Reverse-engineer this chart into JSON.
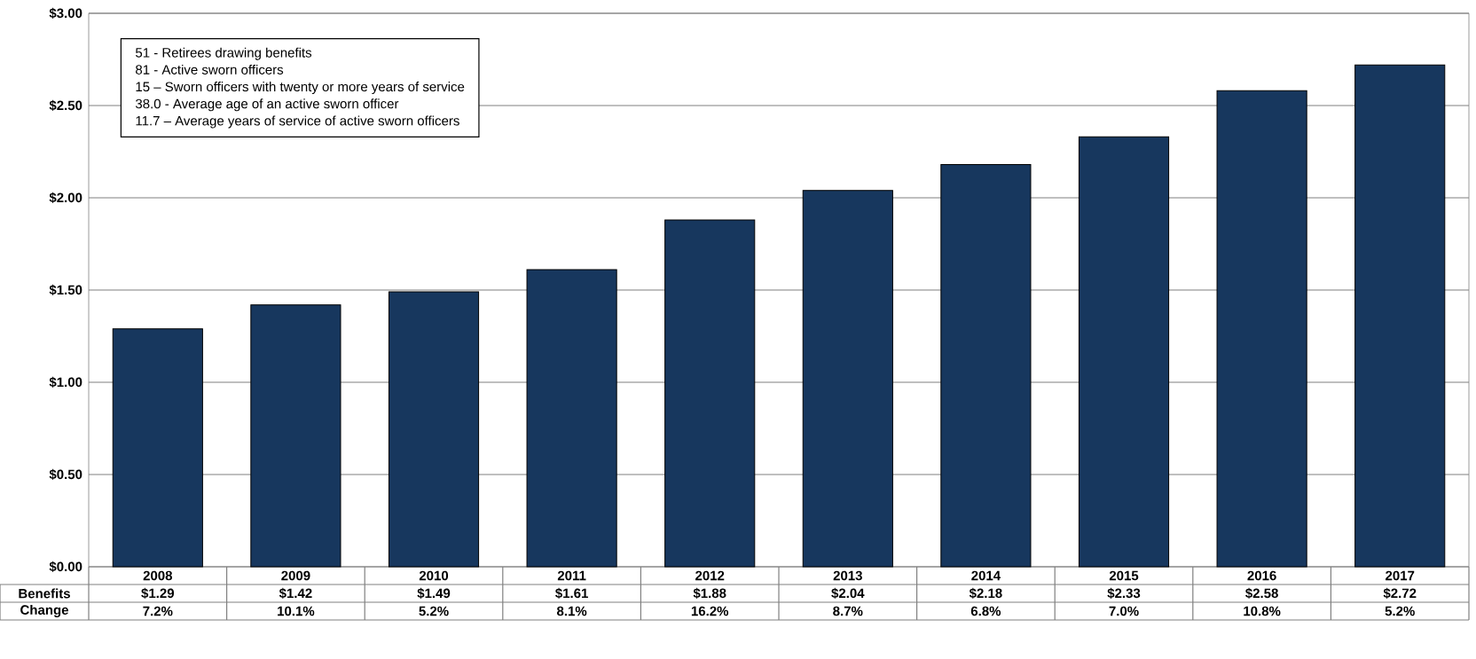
{
  "chart_data": {
    "type": "bar",
    "categories": [
      "2008",
      "2009",
      "2010",
      "2011",
      "2012",
      "2013",
      "2014",
      "2015",
      "2016",
      "2017"
    ],
    "values": [
      1.29,
      1.42,
      1.49,
      1.61,
      1.88,
      2.04,
      2.18,
      2.33,
      2.58,
      2.72
    ],
    "value_labels": [
      "$1.29",
      "$1.42",
      "$1.49",
      "$1.61",
      "$1.88",
      "$2.04",
      "$2.18",
      "$2.33",
      "$2.58",
      "$2.72"
    ],
    "color": "#17375e",
    "ylim": [
      0,
      3
    ],
    "yticks": [
      {
        "value": 0,
        "label": "$0.00"
      },
      {
        "value": 0.5,
        "label": "$0.50"
      },
      {
        "value": 1,
        "label": "$1.00"
      },
      {
        "value": 1.5,
        "label": "$1.50"
      },
      {
        "value": 2,
        "label": "$2.00"
      },
      {
        "value": 2.5,
        "label": "$2.50"
      },
      {
        "value": 3,
        "label": "$3.00"
      }
    ],
    "grid": "y",
    "annotations": [
      "51 - Retirees drawing benefits",
      "81 - Active sworn officers",
      "15 – Sworn officers with twenty or more years of service",
      "38.0 - Average age of an active sworn officer",
      "11.7 – Average years of service of active sworn officers",
      "Benefits",
      "Change",
      "7.2%",
      "10.1%",
      "5.2%",
      "8.1%",
      "16.2%",
      "8.7%",
      "6.8%",
      "7.0%",
      "10.8%",
      "5.2%"
    ]
  }
}
